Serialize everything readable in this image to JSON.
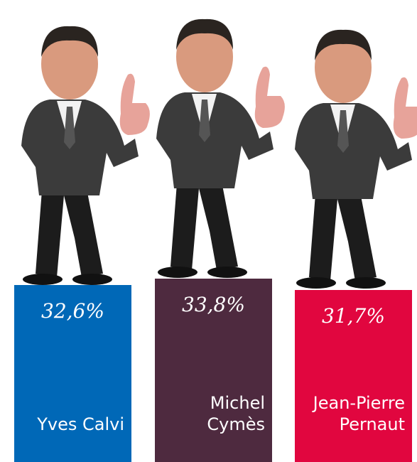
{
  "chart_data": {
    "type": "bar",
    "categories": [
      "Yves Calvi",
      "Michel Cymès",
      "Jean-Pierre Pernaut"
    ],
    "values": [
      32.6,
      33.8,
      31.7
    ],
    "value_labels": [
      "32,6%",
      "33,8%",
      "31,7%"
    ],
    "colors": [
      "#0068b7",
      "#4e2a3f",
      "#e1063f"
    ]
  }
}
